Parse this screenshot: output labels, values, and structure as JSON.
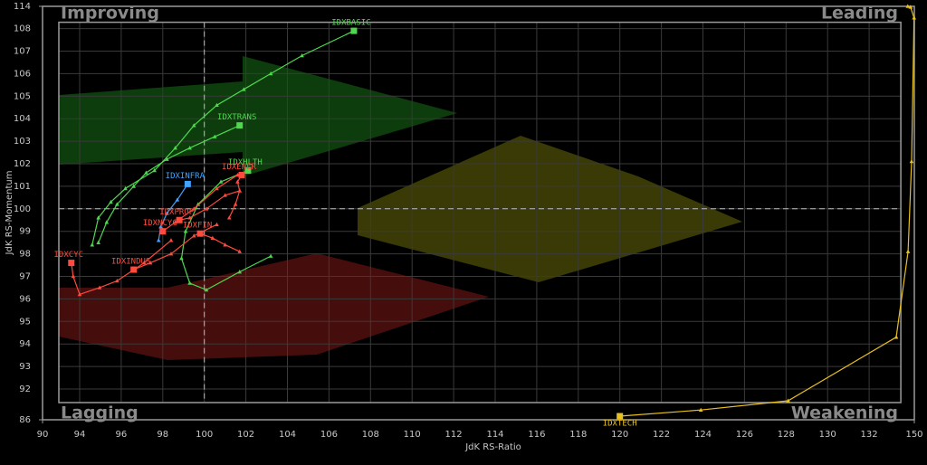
{
  "chart_data": {
    "type": "line",
    "x_label": "JdK RS-Ratio",
    "y_label": "JdK RS-Momentum",
    "quadrant_labels": {
      "top_left": "Improving",
      "top_right": "Leading",
      "bottom_left": "Lagging",
      "bottom_right": "Weakening"
    },
    "xlim": [
      90,
      150
    ],
    "ylim": [
      86,
      114
    ],
    "xticks": [
      90,
      94,
      96,
      98,
      100,
      102,
      104,
      106,
      108,
      110,
      112,
      114,
      116,
      118,
      120,
      122,
      124,
      126,
      128,
      130,
      132,
      150
    ],
    "yticks": [
      86,
      92,
      93,
      94,
      95,
      96,
      97,
      98,
      99,
      100,
      101,
      102,
      103,
      104,
      105,
      106,
      107,
      108,
      114
    ],
    "crosshair": [
      100,
      100
    ],
    "grid": true,
    "series": [
      {
        "name": "IDXBASIC",
        "color": "#4fd84f",
        "x": [
          94.6,
          94.9,
          95.5,
          96.2,
          97.6,
          98.6,
          99.5,
          100.6,
          101.9,
          103.2,
          104.7,
          107.2
        ],
        "values": [
          98.4,
          99.6,
          100.3,
          100.9,
          101.7,
          102.7,
          103.7,
          104.6,
          105.3,
          106.0,
          106.8,
          107.9
        ]
      },
      {
        "name": "IDXTRANS",
        "color": "#4fd84f",
        "x": [
          94.9,
          95.3,
          95.8,
          96.6,
          97.2,
          98.2,
          99.3,
          100.5,
          101.7
        ],
        "values": [
          98.5,
          99.4,
          100.2,
          101.0,
          101.6,
          102.2,
          102.7,
          103.2,
          103.7
        ]
      },
      {
        "name": "IDXHLTH",
        "color": "#4fd84f",
        "x": [
          103.2,
          101.7,
          100.1,
          99.3,
          98.9,
          99.1,
          99.7,
          100.8,
          102.1
        ],
        "values": [
          97.9,
          97.2,
          96.4,
          96.7,
          97.8,
          99.0,
          100.2,
          101.2,
          101.7
        ]
      },
      {
        "name": "IDXENER",
        "color": "#ff4a3d",
        "x": [
          101.2,
          101.5,
          101.7,
          101.6,
          101.8
        ],
        "values": [
          99.6,
          100.2,
          100.8,
          101.2,
          101.5
        ]
      },
      {
        "name": "IDXINFRA",
        "color": "#3fa3ff",
        "x": [
          97.8,
          97.9,
          98.2,
          98.7,
          99.2
        ],
        "values": [
          98.6,
          99.2,
          99.8,
          100.4,
          101.1
        ]
      },
      {
        "name": "IDXPROP",
        "color": "#ff4a3d",
        "x": [
          101.7,
          101.0,
          100.1,
          99.3,
          98.8
        ],
        "values": [
          100.8,
          100.6,
          100.0,
          99.6,
          99.5
        ]
      },
      {
        "name": "IDXNCYC",
        "color": "#ff4a3d",
        "x": [
          101.6,
          100.6,
          99.5,
          98.6,
          98.0
        ],
        "values": [
          101.5,
          100.9,
          100.0,
          99.4,
          99.0
        ]
      },
      {
        "name": "IDXFIN",
        "color": "#ff4a3d",
        "x": [
          101.7,
          101.0,
          100.4,
          99.8
        ],
        "values": [
          98.1,
          98.4,
          98.7,
          98.9
        ]
      },
      {
        "name": "IDXCYC",
        "color": "#ff4a3d",
        "x": [
          98.4,
          97.1,
          95.8,
          94.96,
          94.0,
          93.3,
          93.1
        ],
        "values": [
          98.6,
          97.6,
          96.8,
          96.5,
          96.2,
          97.0,
          97.6
        ]
      },
      {
        "name": "IDXINDUS",
        "color": "#ff4a3d",
        "x": [
          100.6,
          99.5,
          98.4,
          97.4,
          96.6
        ],
        "values": [
          99.3,
          98.8,
          98.0,
          97.6,
          97.3
        ]
      },
      {
        "name": "IDXTECH",
        "color": "#e8c020",
        "x": [
          147.4,
          148.5,
          149.9,
          148.9,
          147.5,
          142.8,
          128.1,
          123.9,
          120.0
        ],
        "values": [
          114,
          113.8,
          110.9,
          102.1,
          98.1,
          94.3,
          89.7,
          87.9,
          86.7
        ]
      }
    ]
  }
}
